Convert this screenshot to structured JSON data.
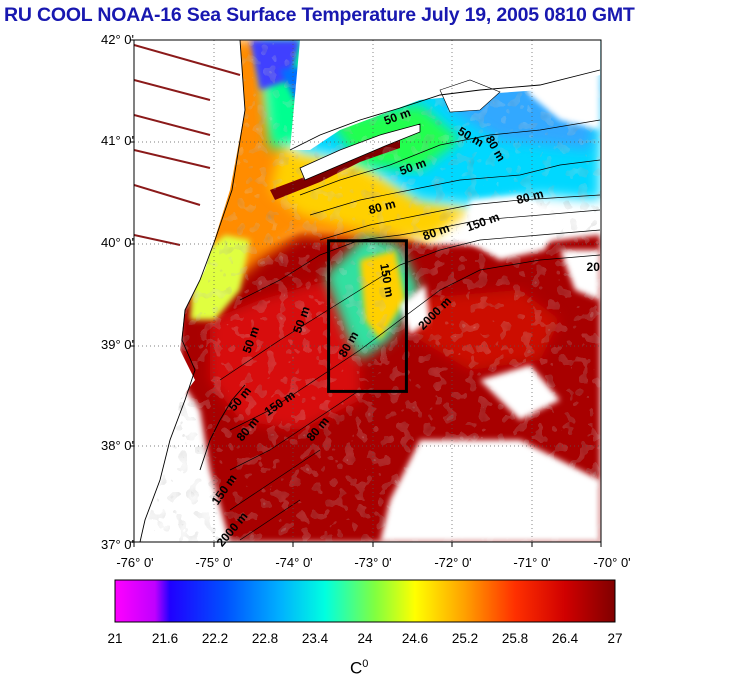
{
  "title": "RU COOL  NOAA-16 Sea Surface Temperature July 19, 2005 0810 GMT",
  "map": {
    "y_ticks": [
      "42° 0'",
      "41° 0'",
      "40° 0'",
      "39° 0'",
      "38° 0'",
      "37° 0'"
    ],
    "x_ticks": [
      "-76° 0'",
      "-75° 0'",
      "-74° 0'",
      "-73° 0'",
      "-72° 0'",
      "-71° 0'",
      "-70° 0'"
    ],
    "lat_range": [
      37,
      42
    ],
    "lon_range": [
      -76,
      -70
    ],
    "box": {
      "lon_min": -73.5,
      "lon_max": -72.5,
      "lat_min": 38.5,
      "lat_max": 40.0
    },
    "contour_labels": [
      {
        "text": "50 m",
        "lon": -72.6,
        "lat": 41.2,
        "rot": -20
      },
      {
        "text": "50 m",
        "lon": -71.7,
        "lat": 41.0,
        "rot": 30
      },
      {
        "text": "50 m",
        "lon": -72.4,
        "lat": 40.7,
        "rot": -20
      },
      {
        "text": "80 m",
        "lon": -72.8,
        "lat": 40.3,
        "rot": -15
      },
      {
        "text": "80 m",
        "lon": -72.1,
        "lat": 40.05,
        "rot": -20
      },
      {
        "text": "150 m",
        "lon": -71.5,
        "lat": 40.15,
        "rot": -20
      },
      {
        "text": "80 m",
        "lon": -70.9,
        "lat": 40.4,
        "rot": -15
      },
      {
        "text": "80 m",
        "lon": -71.4,
        "lat": 40.9,
        "rot": 60
      },
      {
        "text": "150 m",
        "lon": -72.8,
        "lat": 39.6,
        "rot": 80
      },
      {
        "text": "2000 m",
        "lon": -72.1,
        "lat": 39.25,
        "rot": -45
      },
      {
        "text": "50 m",
        "lon": -73.8,
        "lat": 39.2,
        "rot": -70
      },
      {
        "text": "50 m",
        "lon": -74.45,
        "lat": 39.0,
        "rot": -70
      },
      {
        "text": "80 m",
        "lon": -73.2,
        "lat": 38.95,
        "rot": -60
      },
      {
        "text": "50 m",
        "lon": -74.6,
        "lat": 38.4,
        "rot": -50
      },
      {
        "text": "150 m",
        "lon": -74.1,
        "lat": 38.35,
        "rot": -35
      },
      {
        "text": "80 m",
        "lon": -74.5,
        "lat": 38.1,
        "rot": -50
      },
      {
        "text": "80 m",
        "lon": -73.6,
        "lat": 38.1,
        "rot": -50
      },
      {
        "text": "150 m",
        "lon": -74.8,
        "lat": 37.5,
        "rot": -55
      },
      {
        "text": "2000 m",
        "lon": -74.7,
        "lat": 37.1,
        "rot": -50
      },
      {
        "text": "20",
        "lon": -70.1,
        "lat": 39.7,
        "rot": 0
      }
    ]
  },
  "colorbar": {
    "ticks": [
      "21",
      "21.6",
      "22.2",
      "22.8",
      "23.4",
      "24",
      "24.6",
      "25.2",
      "25.8",
      "26.4",
      "27"
    ],
    "min": 21,
    "max": 27,
    "unit_base": "C",
    "unit_sup": "0"
  },
  "colors": {
    "title": "#1818b0",
    "land": "#ffffff",
    "cloud": "#ffffff",
    "box": "#000000"
  }
}
